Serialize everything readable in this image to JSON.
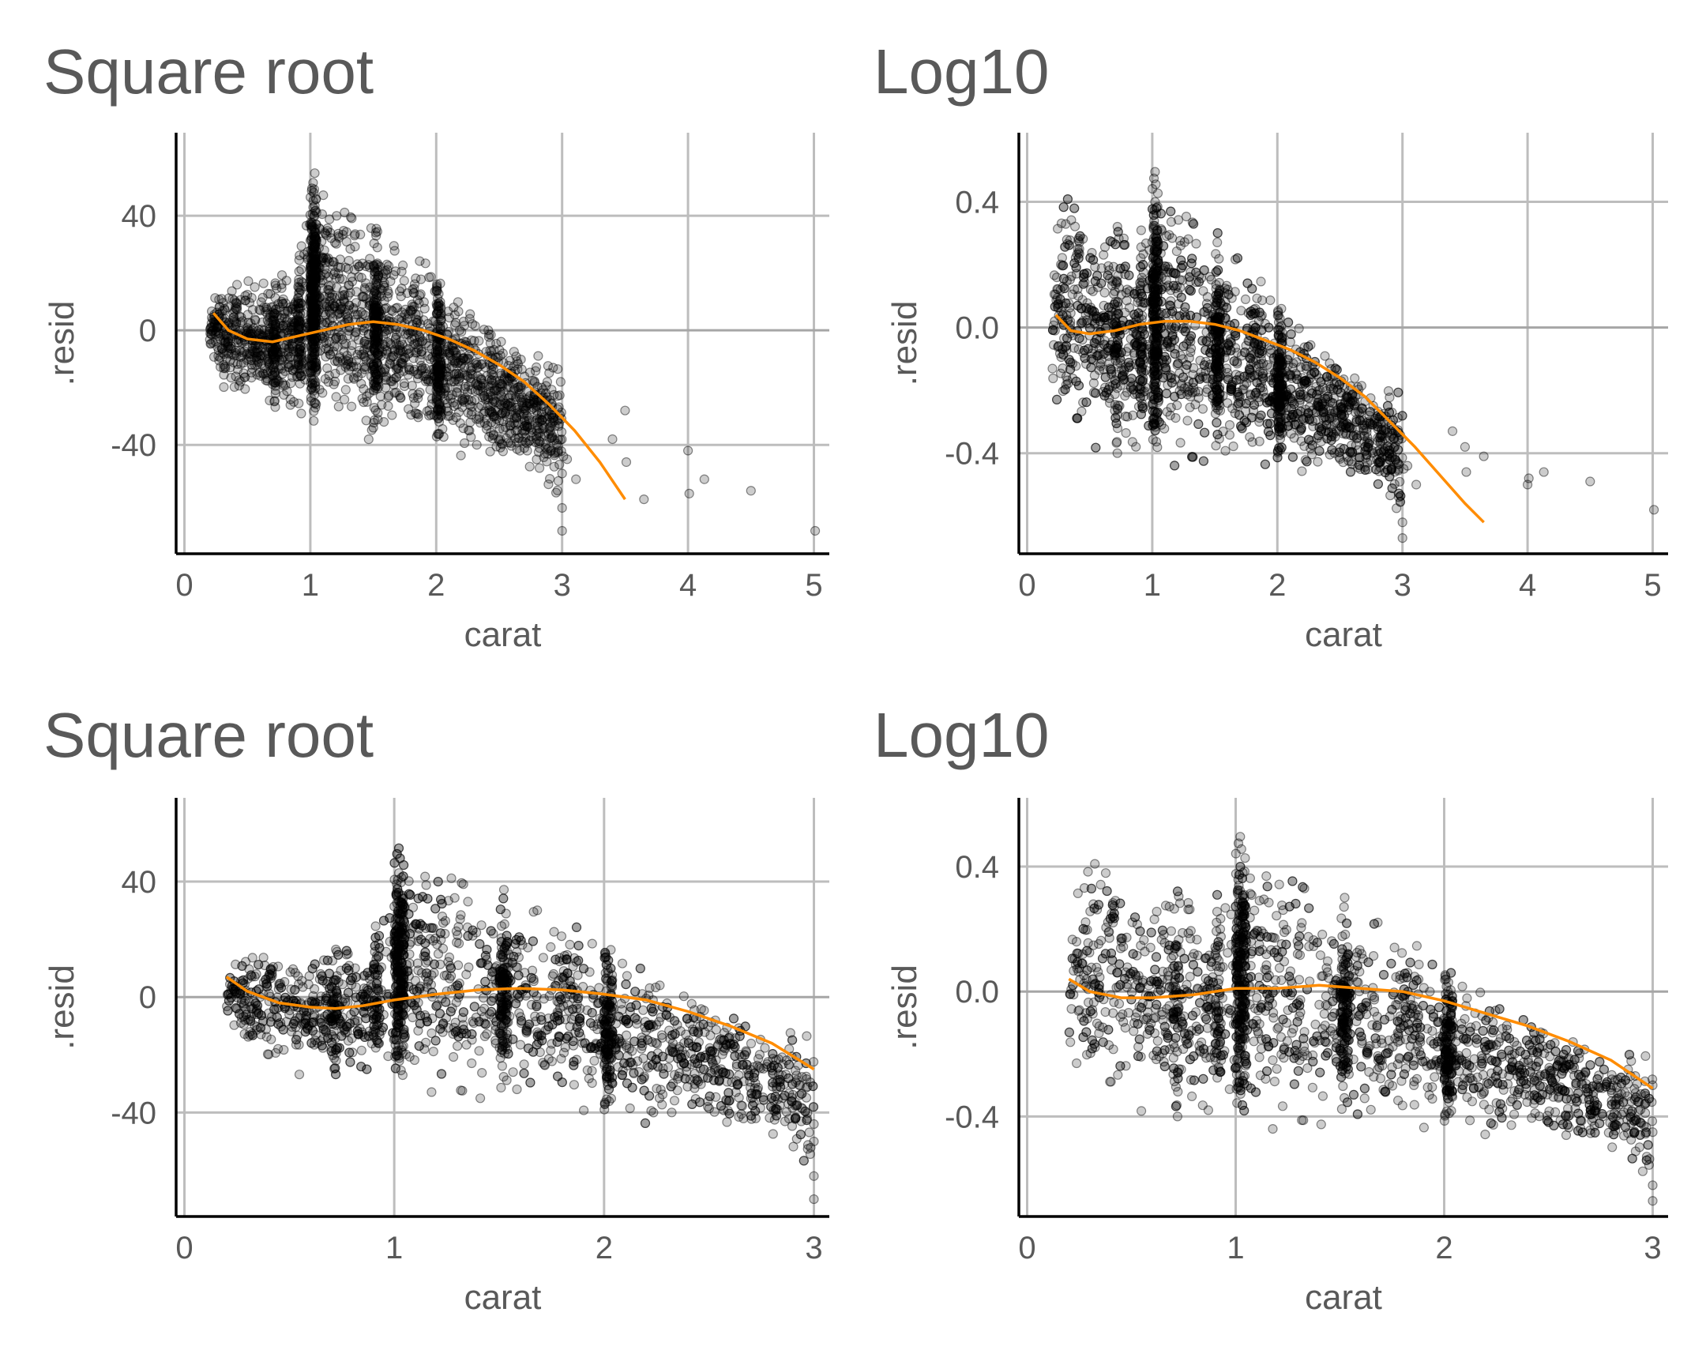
{
  "colors": {
    "points": "#000000",
    "smooth": "#ff8c00",
    "grid": "#bdbdbd",
    "text": "#595959"
  },
  "chart_data": [
    {
      "type": "scatter",
      "title": "Square root",
      "xlabel": "carat",
      "ylabel": ".resid",
      "xlim": [
        0,
        5
      ],
      "ylim": [
        -78,
        69
      ],
      "xticks": [
        0,
        1,
        2,
        3,
        4,
        5
      ],
      "xtick_labels": [
        "0",
        "1",
        "2",
        "3",
        "4",
        "5"
      ],
      "yticks": [
        40,
        0,
        -40
      ],
      "ytick_labels": [
        "40",
        "0",
        "-40"
      ],
      "grid": true,
      "point_color": "#000000",
      "point_alpha": 0.2,
      "smooth_color": "#ff8c00",
      "series": [
        {
          "kind": "band",
          "stops": [
            [
              0.2,
              -9,
              12
            ],
            [
              0.3,
              -20,
              17
            ],
            [
              0.5,
              -27,
              18
            ],
            [
              0.7,
              -28,
              18
            ],
            [
              0.9,
              -29,
              22
            ],
            [
              1.0,
              -33,
              57
            ],
            [
              1.2,
              -34,
              50
            ],
            [
              1.5,
              -40,
              40
            ],
            [
              1.7,
              -35,
              32
            ],
            [
              2.0,
              -42,
              22
            ],
            [
              2.2,
              -44,
              14
            ],
            [
              2.5,
              -46,
              2
            ],
            [
              2.8,
              -50,
              -8
            ],
            [
              3.0,
              -62,
              -13
            ]
          ]
        },
        {
          "kind": "smooth",
          "x": [
            0.23,
            0.35,
            0.5,
            0.7,
            0.9,
            1.1,
            1.3,
            1.5,
            1.7,
            1.9,
            2.1,
            2.3,
            2.5,
            2.7,
            2.9,
            3.1,
            3.3,
            3.5
          ],
          "y": [
            6,
            0,
            -3,
            -4,
            -2,
            0,
            2,
            3,
            2,
            0,
            -3,
            -7,
            -12,
            -18,
            -26,
            -35,
            -46,
            -59
          ]
        },
        {
          "kind": "outliers",
          "x": [
            3.0,
            3.0,
            3.0,
            3.01,
            3.04,
            3.11,
            3.4,
            3.51,
            3.5,
            3.65,
            4.0,
            4.01,
            4.13,
            4.5,
            5.01
          ],
          "y": [
            -62,
            -70,
            -50,
            -44,
            -45,
            -52,
            -38,
            -46,
            -28,
            -59,
            -42,
            -57,
            -52,
            -56,
            -70
          ]
        }
      ]
    },
    {
      "type": "scatter",
      "title": "Log10",
      "xlabel": "carat",
      "ylabel": ".resid",
      "xlim": [
        0,
        5
      ],
      "ylim": [
        -0.72,
        0.62
      ],
      "xticks": [
        0,
        1,
        2,
        3,
        4,
        5
      ],
      "xtick_labels": [
        "0",
        "1",
        "2",
        "3",
        "4",
        "5"
      ],
      "yticks": [
        0.4,
        0.0,
        -0.4
      ],
      "ytick_labels": [
        "0.4",
        "0.0",
        "-0.4"
      ],
      "grid": true,
      "point_color": "#000000",
      "point_alpha": 0.2,
      "smooth_color": "#ff8c00",
      "series": [
        {
          "kind": "band",
          "stops": [
            [
              0.2,
              -0.3,
              0.3
            ],
            [
              0.3,
              -0.34,
              0.5
            ],
            [
              0.5,
              -0.38,
              0.38
            ],
            [
              0.7,
              -0.42,
              0.36
            ],
            [
              0.9,
              -0.44,
              0.3
            ],
            [
              1.0,
              -0.45,
              0.56
            ],
            [
              1.2,
              -0.45,
              0.45
            ],
            [
              1.5,
              -0.46,
              0.33
            ],
            [
              1.7,
              -0.44,
              0.24
            ],
            [
              2.0,
              -0.44,
              0.11
            ],
            [
              2.2,
              -0.46,
              0.03
            ],
            [
              2.5,
              -0.48,
              -0.08
            ],
            [
              2.8,
              -0.52,
              -0.17
            ],
            [
              3.0,
              -0.62,
              -0.2
            ]
          ]
        },
        {
          "kind": "smooth",
          "x": [
            0.23,
            0.35,
            0.5,
            0.7,
            0.9,
            1.1,
            1.3,
            1.5,
            1.7,
            1.9,
            2.1,
            2.3,
            2.5,
            2.7,
            2.9,
            3.1,
            3.3,
            3.5,
            3.65
          ],
          "y": [
            0.04,
            -0.01,
            -0.02,
            -0.01,
            0.01,
            0.02,
            0.02,
            0.01,
            -0.01,
            -0.04,
            -0.07,
            -0.11,
            -0.16,
            -0.22,
            -0.3,
            -0.38,
            -0.47,
            -0.56,
            -0.62
          ]
        },
        {
          "kind": "outliers",
          "x": [
            3.0,
            3.0,
            3.01,
            3.04,
            3.11,
            3.4,
            3.5,
            3.51,
            3.65,
            4.0,
            4.01,
            4.13,
            4.5,
            5.01
          ],
          "y": [
            -0.62,
            -0.67,
            -0.45,
            -0.44,
            -0.5,
            -0.33,
            -0.38,
            -0.46,
            -0.41,
            -0.5,
            -0.48,
            -0.46,
            -0.49,
            -0.58
          ]
        }
      ]
    },
    {
      "type": "scatter",
      "title": "Square root",
      "xlabel": "carat",
      "ylabel": ".resid",
      "xlim": [
        0,
        3
      ],
      "ylim": [
        -76,
        69
      ],
      "xticks": [
        0,
        1,
        2,
        3
      ],
      "xtick_labels": [
        "0",
        "1",
        "2",
        "3"
      ],
      "yticks": [
        40,
        0,
        -40
      ],
      "ytick_labels": [
        "40",
        "0",
        "-40"
      ],
      "grid": true,
      "point_color": "#000000",
      "point_alpha": 0.2,
      "smooth_color": "#ff8c00",
      "series": [
        {
          "kind": "band",
          "stops": [
            [
              0.2,
              -9,
              12
            ],
            [
              0.3,
              -20,
              17
            ],
            [
              0.5,
              -27,
              18
            ],
            [
              0.7,
              -28,
              18
            ],
            [
              0.9,
              -29,
              22
            ],
            [
              1.0,
              -33,
              57
            ],
            [
              1.2,
              -34,
              50
            ],
            [
              1.5,
              -40,
              40
            ],
            [
              1.7,
              -35,
              32
            ],
            [
              2.0,
              -42,
              22
            ],
            [
              2.2,
              -44,
              14
            ],
            [
              2.5,
              -46,
              2
            ],
            [
              2.8,
              -50,
              -8
            ],
            [
              3.0,
              -62,
              -13
            ]
          ]
        },
        {
          "kind": "smooth",
          "x": [
            0.2,
            0.3,
            0.45,
            0.6,
            0.72,
            0.85,
            1.0,
            1.2,
            1.4,
            1.6,
            1.8,
            2.0,
            2.2,
            2.4,
            2.6,
            2.8,
            3.0
          ],
          "y": [
            7,
            2,
            -2,
            -3.5,
            -4,
            -3,
            -1,
            1,
            2.5,
            3,
            2.5,
            1,
            -1,
            -5,
            -10,
            -16,
            -25
          ]
        },
        {
          "kind": "outliers",
          "x": [
            3.0,
            3.0,
            3.0,
            3.0
          ],
          "y": [
            -62,
            -70,
            -50,
            -44
          ]
        }
      ]
    },
    {
      "type": "scatter",
      "title": "Log10",
      "xlabel": "carat",
      "ylabel": ".resid",
      "xlim": [
        0,
        3
      ],
      "ylim": [
        -0.72,
        0.62
      ],
      "xticks": [
        0,
        1,
        2,
        3
      ],
      "xtick_labels": [
        "0",
        "1",
        "2",
        "3"
      ],
      "yticks": [
        0.4,
        0.0,
        -0.4
      ],
      "ytick_labels": [
        "0.4",
        "0.0",
        "-0.4"
      ],
      "grid": true,
      "point_color": "#000000",
      "point_alpha": 0.2,
      "smooth_color": "#ff8c00",
      "series": [
        {
          "kind": "band",
          "stops": [
            [
              0.2,
              -0.3,
              0.3
            ],
            [
              0.3,
              -0.34,
              0.5
            ],
            [
              0.5,
              -0.38,
              0.38
            ],
            [
              0.7,
              -0.42,
              0.36
            ],
            [
              0.9,
              -0.44,
              0.3
            ],
            [
              1.0,
              -0.45,
              0.56
            ],
            [
              1.2,
              -0.45,
              0.45
            ],
            [
              1.5,
              -0.46,
              0.33
            ],
            [
              1.7,
              -0.44,
              0.24
            ],
            [
              2.0,
              -0.44,
              0.11
            ],
            [
              2.2,
              -0.46,
              0.03
            ],
            [
              2.5,
              -0.48,
              -0.08
            ],
            [
              2.8,
              -0.52,
              -0.17
            ],
            [
              3.0,
              -0.62,
              -0.2
            ]
          ]
        },
        {
          "kind": "smooth",
          "x": [
            0.2,
            0.3,
            0.45,
            0.6,
            0.8,
            1.0,
            1.2,
            1.4,
            1.6,
            1.8,
            2.0,
            2.2,
            2.4,
            2.6,
            2.8,
            3.0
          ],
          "y": [
            0.04,
            0.0,
            -0.02,
            -0.02,
            -0.01,
            0.01,
            0.01,
            0.02,
            0.01,
            0.0,
            -0.03,
            -0.07,
            -0.11,
            -0.16,
            -0.22,
            -0.31
          ]
        },
        {
          "kind": "outliers",
          "x": [
            3.0,
            3.0,
            3.0,
            3.0
          ],
          "y": [
            -0.62,
            -0.67,
            -0.45,
            -0.3
          ]
        }
      ]
    }
  ]
}
